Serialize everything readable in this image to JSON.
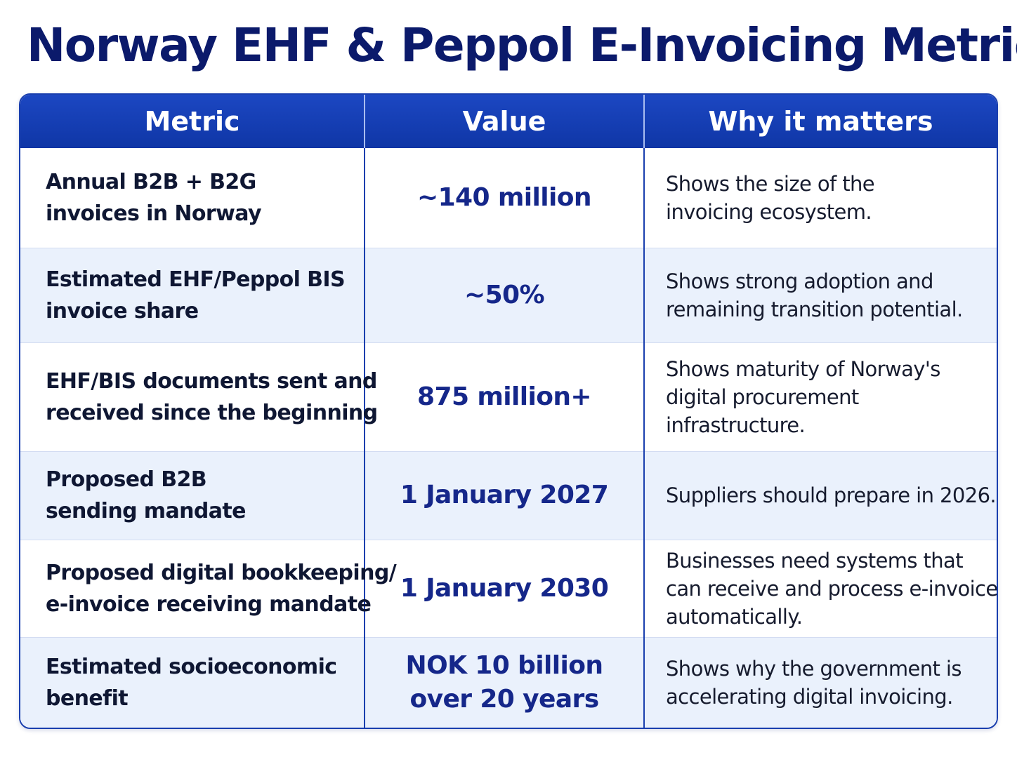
{
  "title": "Norway EHF & Peppol E-Invoicing Metrics",
  "table": {
    "headers": [
      "Metric",
      "Value",
      "Why it matters"
    ],
    "rows": [
      {
        "metric": [
          "Annual B2B + B2G",
          "invoices in Norway"
        ],
        "value": [
          "~140 million"
        ],
        "why": [
          "Shows the size of the",
          "invoicing ecosystem."
        ]
      },
      {
        "metric": [
          "Estimated EHF/Peppol BIS",
          "invoice share"
        ],
        "value": [
          "~50%"
        ],
        "why": [
          "Shows strong adoption and",
          "remaining transition potential."
        ]
      },
      {
        "metric": [
          "EHF/BIS documents sent and",
          "received since the beginning"
        ],
        "value": [
          "875 million+"
        ],
        "why": [
          "Shows maturity of Norway's",
          "digital procurement",
          "infrastructure."
        ]
      },
      {
        "metric": [
          "Proposed B2B",
          "sending mandate"
        ],
        "value": [
          "1 January 2027"
        ],
        "why": [
          "Suppliers should prepare in 2026."
        ]
      },
      {
        "metric": [
          "Proposed digital bookkeeping/",
          "e-invoice receiving mandate"
        ],
        "value": [
          "1 January 2030"
        ],
        "why": [
          "Businesses need systems that",
          "can receive and process e-invoices",
          "automatically."
        ]
      },
      {
        "metric": [
          "Estimated socioeconomic",
          "benefit"
        ],
        "value": [
          "NOK 10 billion",
          "over 20 years"
        ],
        "why": [
          "Shows why the government is",
          "accelerating digital invoicing."
        ]
      }
    ]
  }
}
